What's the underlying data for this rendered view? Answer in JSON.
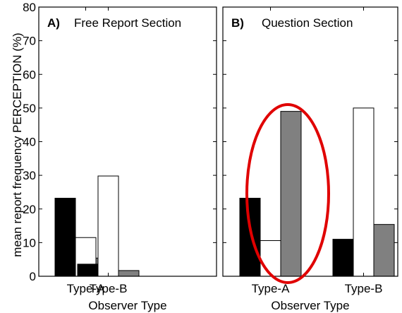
{
  "chart_data": [
    {
      "type": "bar",
      "panel_label": "A)",
      "title": "Free Report Section",
      "xlabel": "Observer Type",
      "ylabel": "mean report frequency PERCEPTION (%)",
      "ylim": [
        0,
        80
      ],
      "yticks": [
        0,
        10,
        20,
        30,
        40,
        50,
        60,
        70,
        80
      ],
      "categories": [
        "Type-A",
        "Type-B"
      ],
      "series": [
        {
          "color": "#000000",
          "values": [
            23.2,
            3.6
          ]
        },
        {
          "color": "#ffffff",
          "values": [
            11.5,
            29.8
          ]
        },
        {
          "color": "#808080",
          "values": [
            5.4,
            1.7
          ]
        }
      ],
      "grid": false
    },
    {
      "type": "bar",
      "panel_label": "B)",
      "title": "Question Section",
      "xlabel": "Observer Type",
      "ylim": [
        0,
        80
      ],
      "categories": [
        "Type-A",
        "Type-B"
      ],
      "series": [
        {
          "color": "#000000",
          "values": [
            23.2,
            11.0
          ]
        },
        {
          "color": "#ffffff",
          "values": [
            10.6,
            50.0
          ]
        },
        {
          "color": "#808080",
          "values": [
            49.0,
            15.4
          ]
        }
      ],
      "grid": false,
      "annotation": {
        "shape": "ellipse",
        "color": "#e00000",
        "encloses_category": "Type-A"
      }
    }
  ]
}
